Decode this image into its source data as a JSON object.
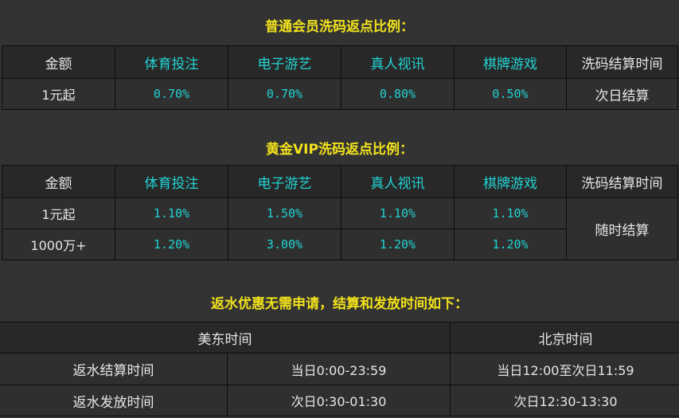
{
  "colors": {
    "title": "#f2e21c",
    "accent": "#22d3d3",
    "background": "#333333"
  },
  "section1": {
    "title": "普通会员洗码返点比例：",
    "headers": [
      "金额",
      "体育投注",
      "电子游艺",
      "真人视讯",
      "棋牌游戏",
      "洗码结算时间"
    ],
    "rows": [
      [
        "1元起",
        "0.70%",
        "0.70%",
        "0.80%",
        "0.50%",
        "次日结算"
      ]
    ]
  },
  "section2": {
    "title": "黄金VIP洗码返点比例：",
    "headers": [
      "金额",
      "体育投注",
      "电子游艺",
      "真人视讯",
      "棋牌游戏",
      "洗码结算时间"
    ],
    "rows": [
      [
        "1元起",
        "1.10%",
        "1.50%",
        "1.10%",
        "1.10%"
      ],
      [
        "1000万+",
        "1.20%",
        "3.00%",
        "1.20%",
        "1.20%"
      ]
    ],
    "settlement": "随时结算"
  },
  "section3": {
    "title": "返水优惠无需申请，结算和发放时间如下：",
    "headers": [
      "美东时间",
      "北京时间"
    ],
    "rows": [
      [
        "返水结算时间",
        "当日0:00-23:59",
        "当日12:00至次日11:59"
      ],
      [
        "返水发放时间",
        "次日0:30-01:30",
        "次日12:30-13:30"
      ]
    ]
  }
}
